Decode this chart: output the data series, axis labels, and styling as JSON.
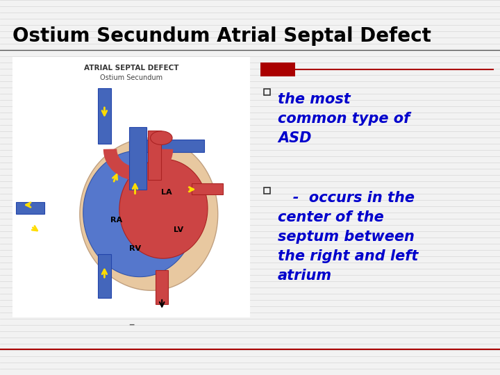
{
  "title": "Ostium Secundum Atrial Septal Defect",
  "title_fontsize": 20,
  "title_color": "#000000",
  "background_color": "#d4d4d4",
  "slide_bg": "#f0f0f0",
  "bullet1_line1": "the most",
  "bullet1_line2": "common type of",
  "bullet1_line3": "ASD",
  "bullet2_line1": "   -  occurs in the",
  "bullet2_line2": "center of the",
  "bullet2_line3": "septum between",
  "bullet2_line4": "the right and left",
  "bullet2_line5": "atrium",
  "bullet_color": "#0000cc",
  "bullet_fontsize": 15,
  "img_label_top": "ATRIAL SEPTAL DEFECT",
  "img_label_sub": "Ostium Secundum",
  "red_box_color": "#aa0000",
  "line_color": "#aa0000",
  "separator_color": "#aa0000",
  "stripe_color": "#c8c8cc",
  "blue_vessel": "#4466bb",
  "red_vessel": "#cc3333",
  "heart_blue": "#5577cc",
  "heart_red": "#cc4444",
  "heart_tan": "#e8c8a0",
  "yellow_arrow": "#ffdd00"
}
